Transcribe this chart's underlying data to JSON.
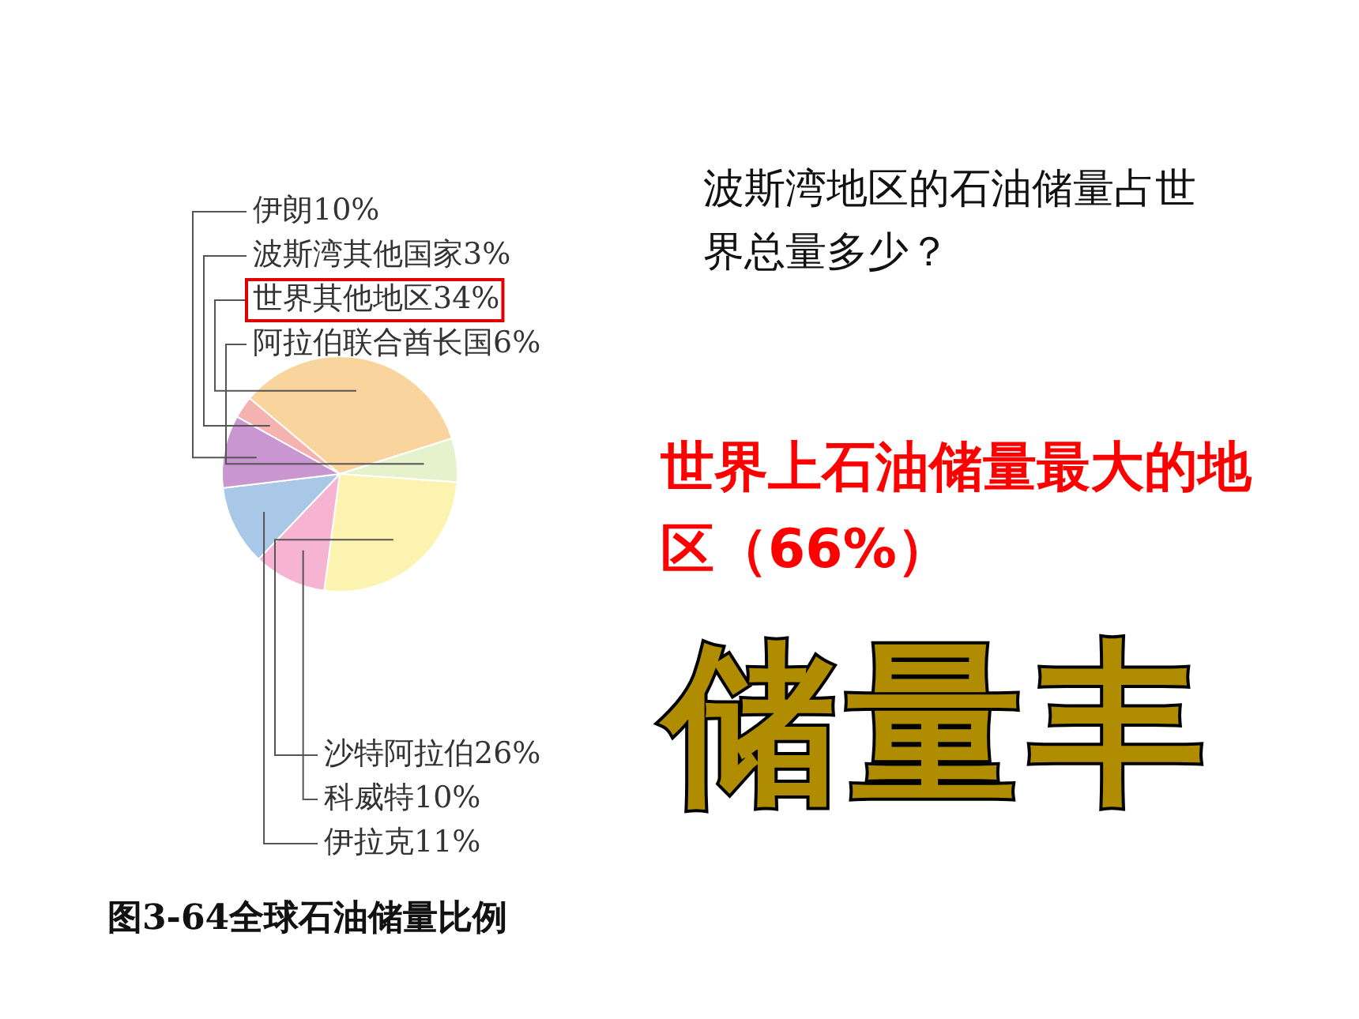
{
  "chart_data": {
    "type": "pie",
    "title": "图3-64全球石油储量比例",
    "categories": [
      "世界其他地区",
      "阿拉伯联合酋长国",
      "沙特阿拉伯",
      "科威特",
      "伊拉克",
      "伊朗",
      "波斯湾其他国家"
    ],
    "values": [
      34,
      6,
      26,
      10,
      11,
      10,
      3
    ],
    "value_labels": [
      "34%",
      "6%",
      "26%",
      "10%",
      "11%",
      "10%",
      "3%"
    ],
    "colors": [
      "#f9d49c",
      "#e6f2cc",
      "#fdf3b0",
      "#f6b3d2",
      "#a9c7e6",
      "#c996d2",
      "#f4b3b0"
    ],
    "annotations": [
      "波斯湾地区的石油储量占世界总量多少？",
      "世界上石油储量最大的地区（66%）",
      "储量丰"
    ]
  }
}
